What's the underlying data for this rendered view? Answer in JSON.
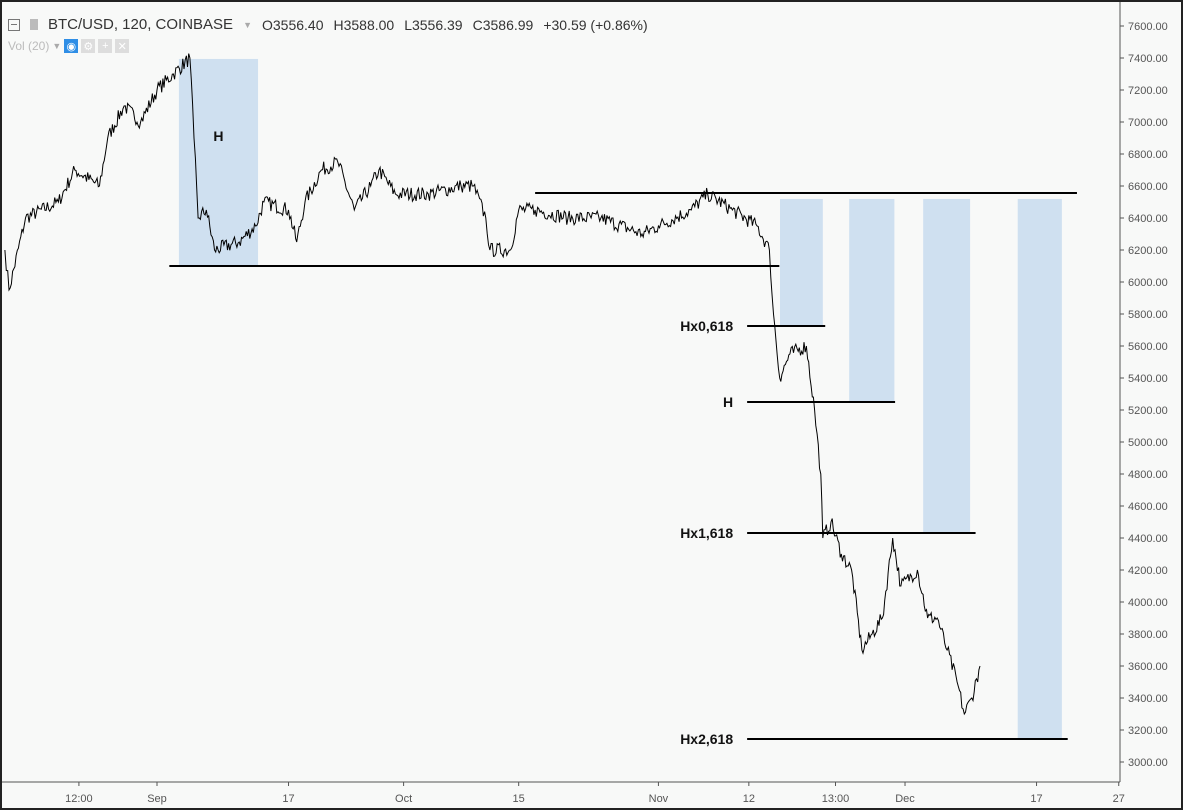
{
  "header": {
    "symbol": "BTC/USD, 120, COINBASE",
    "open": "O3556.40",
    "high": "H3588.00",
    "low": "L3556.39",
    "close": "C3586.99",
    "change": "+30.59 (+0.86%)"
  },
  "volume": {
    "label": "Vol (20)",
    "icons": [
      "eye-icon",
      "gear-icon",
      "plus-icon",
      "close-icon"
    ]
  },
  "colors": {
    "price": "#000000",
    "box": "#cfe0f0",
    "background": "#f8f9f8"
  },
  "chart_data": {
    "type": "line",
    "ylim": [
      2900,
      7700
    ],
    "y_ticks": [
      "3000.00",
      "3200.00",
      "3400.00",
      "3600.00",
      "3800.00",
      "4000.00",
      "4200.00",
      "4400.00",
      "4600.00",
      "4800.00",
      "5000.00",
      "5200.00",
      "5400.00",
      "5600.00",
      "5800.00",
      "6000.00",
      "6200.00",
      "6400.00",
      "6600.00",
      "6800.00",
      "7000.00",
      "7200.00",
      "7400.00",
      "7600.00"
    ],
    "x_ticks": [
      {
        "label": "12:00",
        "date": "2018-08-22 12:00"
      },
      {
        "label": "Sep",
        "date": "2018-09-01 00:00"
      },
      {
        "label": "17",
        "date": "2018-09-17 00:00"
      },
      {
        "label": "Oct",
        "date": "2018-10-01 00:00"
      },
      {
        "label": "15",
        "date": "2018-10-15 00:00"
      },
      {
        "label": "Nov",
        "date": "2018-11-01 00:00"
      },
      {
        "label": "12",
        "date": "2018-11-12 00:00"
      },
      {
        "label": "13:00",
        "date": "2018-11-22 13:00"
      },
      {
        "label": "Dec",
        "date": "2018-12-01 00:00"
      },
      {
        "label": "17",
        "date": "2018-12-17 00:00"
      },
      {
        "label": "27",
        "date": "2018-12-27 00:00"
      }
    ],
    "series": [
      {
        "points": [
          [
            "2018-08-13 12:00",
            6200
          ],
          [
            "2018-08-14 00:00",
            5950
          ],
          [
            "2018-08-16 00:00",
            6400
          ],
          [
            "2018-08-20 00:00",
            6500
          ],
          [
            "2018-08-22 00:00",
            6700
          ],
          [
            "2018-08-25 00:00",
            6600
          ],
          [
            "2018-08-26 00:00",
            6900
          ],
          [
            "2018-08-28 00:00",
            7100
          ],
          [
            "2018-08-30 00:00",
            7000
          ],
          [
            "2018-09-01 00:00",
            7200
          ],
          [
            "2018-09-03 00:00",
            7300
          ],
          [
            "2018-09-05 00:00",
            7400
          ],
          [
            "2018-09-05 12:00",
            6900
          ],
          [
            "2018-09-06 00:00",
            6400
          ],
          [
            "2018-09-07 00:00",
            6450
          ],
          [
            "2018-09-08 00:00",
            6200
          ],
          [
            "2018-09-11 00:00",
            6250
          ],
          [
            "2018-09-13 00:00",
            6350
          ],
          [
            "2018-09-14 00:00",
            6500
          ],
          [
            "2018-09-17 00:00",
            6450
          ],
          [
            "2018-09-18 00:00",
            6250
          ],
          [
            "2018-09-19 00:00",
            6500
          ],
          [
            "2018-09-21 00:00",
            6700
          ],
          [
            "2018-09-23 00:00",
            6750
          ],
          [
            "2018-09-25 00:00",
            6450
          ],
          [
            "2018-09-27 00:00",
            6600
          ],
          [
            "2018-09-28 00:00",
            6700
          ],
          [
            "2018-09-30 00:00",
            6550
          ],
          [
            "2018-10-04 00:00",
            6550
          ],
          [
            "2018-10-08 00:00",
            6600
          ],
          [
            "2018-10-09 12:00",
            6600
          ],
          [
            "2018-10-11 00:00",
            6400
          ],
          [
            "2018-10-11 12:00",
            6200
          ],
          [
            "2018-10-14 00:00",
            6200
          ],
          [
            "2018-10-15 00:00",
            6450
          ],
          [
            "2018-10-17 00:00",
            6450
          ],
          [
            "2018-10-21 00:00",
            6400
          ],
          [
            "2018-10-25 00:00",
            6400
          ],
          [
            "2018-10-30 00:00",
            6300
          ],
          [
            "2018-11-01 00:00",
            6350
          ],
          [
            "2018-11-05 00:00",
            6450
          ],
          [
            "2018-11-07 00:00",
            6550
          ],
          [
            "2018-11-10 00:00",
            6450
          ],
          [
            "2018-11-13 00:00",
            6350
          ],
          [
            "2018-11-14 12:00",
            6200
          ],
          [
            "2018-11-15 00:00",
            5800
          ],
          [
            "2018-11-15 18:00",
            5400
          ],
          [
            "2018-11-17 00:00",
            5550
          ],
          [
            "2018-11-19 00:00",
            5600
          ],
          [
            "2018-11-20 00:00",
            5200
          ],
          [
            "2018-11-20 18:00",
            4800
          ],
          [
            "2018-11-21 00:00",
            4400
          ],
          [
            "2018-11-22 00:00",
            4500
          ],
          [
            "2018-11-23 06:00",
            4300
          ],
          [
            "2018-11-24 12:00",
            4200
          ],
          [
            "2018-11-25 18:00",
            3700
          ],
          [
            "2018-11-27 00:00",
            3800
          ],
          [
            "2018-11-28 06:00",
            3900
          ],
          [
            "2018-11-29 12:00",
            4400
          ],
          [
            "2018-11-30 12:00",
            4100
          ],
          [
            "2018-12-02 12:00",
            4200
          ],
          [
            "2018-12-03 18:00",
            3900
          ],
          [
            "2018-12-04 22:00",
            3900
          ],
          [
            "2018-12-06 03:00",
            3700
          ],
          [
            "2018-12-07 08:00",
            3500
          ],
          [
            "2018-12-08 05:00",
            3300
          ],
          [
            "2018-12-09 03:00",
            3400
          ],
          [
            "2018-12-10 03:00",
            3600
          ]
        ]
      }
    ],
    "boxes": [
      {
        "from": "2018-09-03 16:00",
        "to": "2018-09-13 07:00",
        "top": 7394,
        "bottom": 6100,
        "label": "H"
      },
      {
        "from": "2018-11-15 19:00",
        "to": "2018-11-21 00:00",
        "top": 6519,
        "bottom": 5725
      },
      {
        "from": "2018-11-24 05:00",
        "to": "2018-11-29 17:00",
        "top": 6519,
        "bottom": 5250
      },
      {
        "from": "2018-12-03 05:00",
        "to": "2018-12-08 22:00",
        "top": 6519,
        "bottom": 4431
      },
      {
        "from": "2018-12-14 17:00",
        "to": "2018-12-20 02:00",
        "top": 6519,
        "bottom": 3144
      }
    ],
    "levels": [
      {
        "price": 6100,
        "from": "2018-09-02 12:00",
        "to": "2018-11-15 17:00",
        "label": ""
      },
      {
        "price": 6556,
        "from": "2018-10-17 00:00",
        "to": "2018-12-21 22:00",
        "label": ""
      },
      {
        "price": 5725,
        "from": "2018-11-11 19:00",
        "to": "2018-11-21 07:00",
        "label": "Hx0,618"
      },
      {
        "price": 5250,
        "from": "2018-11-11 19:00",
        "to": "2018-11-29 19:00",
        "label": "H"
      },
      {
        "price": 4431,
        "from": "2018-11-11 19:00",
        "to": "2018-12-09 14:00",
        "label": "Hx1,618"
      },
      {
        "price": 3144,
        "from": "2018-11-11 19:00",
        "to": "2018-12-20 19:00",
        "label": "Hx2,618"
      }
    ]
  }
}
